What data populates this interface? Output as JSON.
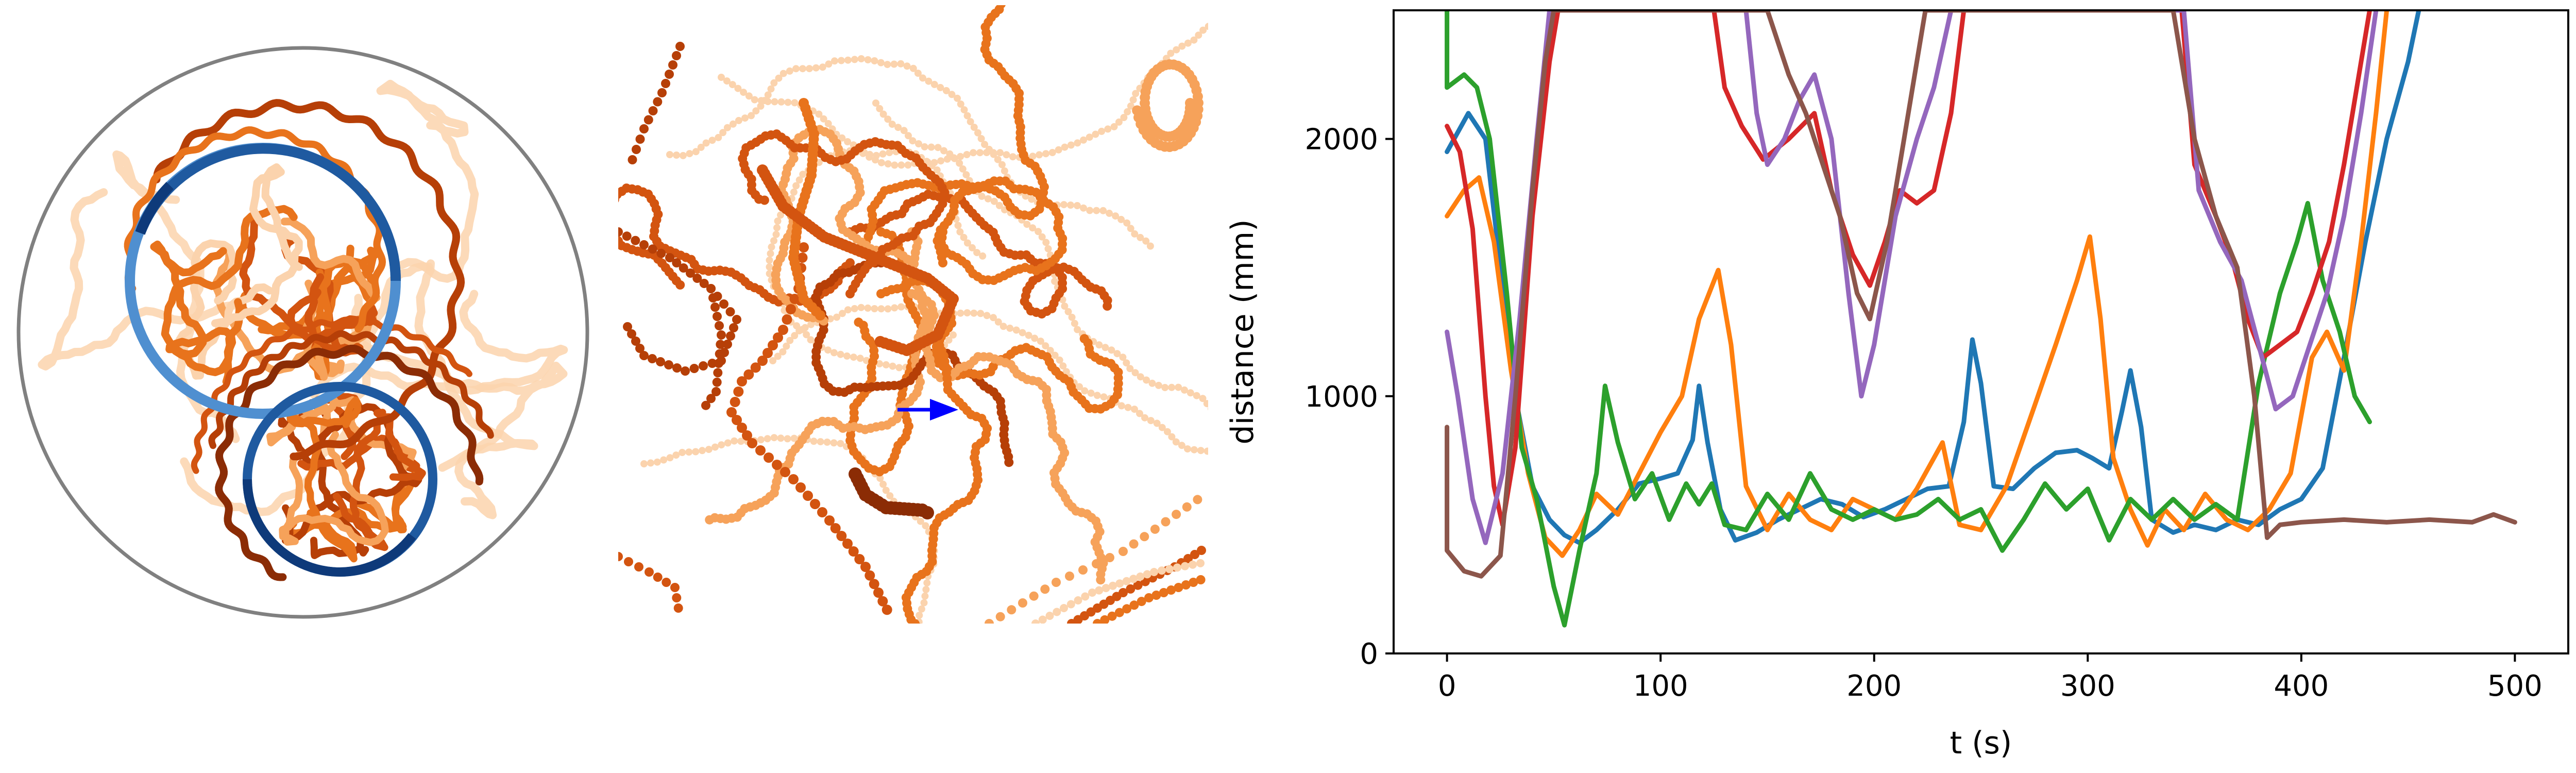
{
  "chart_data": [
    {
      "type": "trajectory",
      "panel": "arena",
      "arena_color": "#808080",
      "ring_colors": {
        "outer": "#1f5aa0",
        "inner": "#0e3a7a",
        "highlight": "#4f8fd0"
      },
      "track_colors": [
        "#8b2c05",
        "#b63f07",
        "#d35410",
        "#e8731c",
        "#f6a25a",
        "#fbd3ad"
      ]
    },
    {
      "type": "scatter",
      "panel": "zoom",
      "arrow_color": "#0000ff",
      "dot_colors": [
        "#8b2c05",
        "#b63f07",
        "#d35410",
        "#e8731c",
        "#f6a25a",
        "#fbd3ad"
      ]
    },
    {
      "type": "line",
      "panel": "distance",
      "xlabel": "t (s)",
      "ylabel": "distance (mm)",
      "xlim": [
        -25,
        525
      ],
      "ylim": [
        0,
        2500
      ],
      "xticks": [
        0,
        100,
        200,
        300,
        400,
        500
      ],
      "yticks": [
        0,
        1000,
        2000
      ],
      "grid": false,
      "series": [
        {
          "color": "#1f77b4",
          "points": [
            [
              0,
              1950
            ],
            [
              10,
              2100
            ],
            [
              18,
              2000
            ],
            [
              25,
              1500
            ],
            [
              32,
              1000
            ],
            [
              40,
              650
            ],
            [
              48,
              520
            ],
            [
              55,
              460
            ],
            [
              62,
              430
            ],
            [
              70,
              480
            ],
            [
              80,
              560
            ],
            [
              90,
              660
            ],
            [
              100,
              680
            ],
            [
              108,
              700
            ],
            [
              115,
              830
            ],
            [
              118,
              1040
            ],
            [
              122,
              820
            ],
            [
              128,
              560
            ],
            [
              135,
              440
            ],
            [
              145,
              470
            ],
            [
              155,
              520
            ],
            [
              165,
              560
            ],
            [
              175,
              600
            ],
            [
              185,
              580
            ],
            [
              195,
              530
            ],
            [
              205,
              560
            ],
            [
              215,
              600
            ],
            [
              225,
              640
            ],
            [
              235,
              650
            ],
            [
              242,
              900
            ],
            [
              246,
              1220
            ],
            [
              250,
              1050
            ],
            [
              256,
              650
            ],
            [
              265,
              640
            ],
            [
              275,
              720
            ],
            [
              285,
              780
            ],
            [
              295,
              790
            ],
            [
              302,
              760
            ],
            [
              310,
              720
            ],
            [
              316,
              940
            ],
            [
              320,
              1100
            ],
            [
              325,
              880
            ],
            [
              330,
              520
            ],
            [
              340,
              470
            ],
            [
              350,
              500
            ],
            [
              360,
              480
            ],
            [
              370,
              520
            ],
            [
              380,
              500
            ],
            [
              390,
              560
            ],
            [
              400,
              600
            ],
            [
              410,
              720
            ],
            [
              420,
              1150
            ],
            [
              430,
              1600
            ],
            [
              440,
              2000
            ],
            [
              450,
              2300
            ],
            [
              455,
              2500
            ]
          ]
        },
        {
          "color": "#ff7f0e",
          "points": [
            [
              0,
              1700
            ],
            [
              8,
              1800
            ],
            [
              15,
              1850
            ],
            [
              22,
              1600
            ],
            [
              30,
              1100
            ],
            [
              38,
              700
            ],
            [
              46,
              450
            ],
            [
              54,
              380
            ],
            [
              62,
              480
            ],
            [
              70,
              620
            ],
            [
              80,
              540
            ],
            [
              90,
              700
            ],
            [
              100,
              860
            ],
            [
              110,
              1000
            ],
            [
              118,
              1300
            ],
            [
              127,
              1490
            ],
            [
              133,
              1200
            ],
            [
              140,
              650
            ],
            [
              150,
              480
            ],
            [
              160,
              620
            ],
            [
              170,
              520
            ],
            [
              180,
              480
            ],
            [
              190,
              600
            ],
            [
              200,
              560
            ],
            [
              210,
              520
            ],
            [
              220,
              640
            ],
            [
              232,
              820
            ],
            [
              240,
              500
            ],
            [
              250,
              480
            ],
            [
              262,
              650
            ],
            [
              275,
              960
            ],
            [
              285,
              1200
            ],
            [
              295,
              1450
            ],
            [
              301,
              1620
            ],
            [
              306,
              1300
            ],
            [
              312,
              760
            ],
            [
              320,
              560
            ],
            [
              328,
              420
            ],
            [
              336,
              560
            ],
            [
              345,
              480
            ],
            [
              355,
              620
            ],
            [
              365,
              520
            ],
            [
              375,
              480
            ],
            [
              385,
              560
            ],
            [
              395,
              700
            ],
            [
              405,
              1150
            ],
            [
              412,
              1250
            ],
            [
              420,
              1100
            ],
            [
              428,
              1600
            ],
            [
              435,
              2100
            ],
            [
              440,
              2500
            ]
          ]
        },
        {
          "color": "#2ca02c",
          "points": [
            [
              0,
              2500
            ],
            [
              0,
              2200
            ],
            [
              8,
              2250
            ],
            [
              14,
              2200
            ],
            [
              20,
              2000
            ],
            [
              28,
              1400
            ],
            [
              35,
              800
            ],
            [
              42,
              600
            ],
            [
              50,
              260
            ],
            [
              55,
              110
            ],
            [
              62,
              400
            ],
            [
              70,
              700
            ],
            [
              74,
              1040
            ],
            [
              80,
              820
            ],
            [
              88,
              600
            ],
            [
              96,
              700
            ],
            [
              104,
              520
            ],
            [
              112,
              660
            ],
            [
              118,
              580
            ],
            [
              124,
              660
            ],
            [
              130,
              500
            ],
            [
              140,
              480
            ],
            [
              150,
              620
            ],
            [
              160,
              520
            ],
            [
              170,
              700
            ],
            [
              180,
              560
            ],
            [
              190,
              520
            ],
            [
              200,
              560
            ],
            [
              210,
              520
            ],
            [
              220,
              540
            ],
            [
              230,
              600
            ],
            [
              240,
              520
            ],
            [
              250,
              560
            ],
            [
              260,
              400
            ],
            [
              270,
              520
            ],
            [
              280,
              660
            ],
            [
              290,
              560
            ],
            [
              300,
              640
            ],
            [
              310,
              440
            ],
            [
              320,
              600
            ],
            [
              330,
              520
            ],
            [
              340,
              600
            ],
            [
              350,
              520
            ],
            [
              360,
              580
            ],
            [
              370,
              520
            ],
            [
              380,
              1050
            ],
            [
              390,
              1400
            ],
            [
              398,
              1600
            ],
            [
              403,
              1750
            ],
            [
              410,
              1450
            ],
            [
              418,
              1250
            ],
            [
              425,
              1000
            ],
            [
              432,
              900
            ]
          ]
        },
        {
          "color": "#d62728",
          "points": [
            [
              0,
              2050
            ],
            [
              6,
              1950
            ],
            [
              12,
              1650
            ],
            [
              18,
              1000
            ],
            [
              22,
              650
            ],
            [
              26,
              500
            ],
            [
              32,
              800
            ],
            [
              40,
              1700
            ],
            [
              48,
              2300
            ],
            [
              52,
              2500
            ],
            [
              125,
              2500
            ],
            [
              130,
              2200
            ],
            [
              138,
              2050
            ],
            [
              148,
              1920
            ],
            [
              160,
              2000
            ],
            [
              172,
              2100
            ],
            [
              180,
              1800
            ],
            [
              190,
              1550
            ],
            [
              198,
              1430
            ],
            [
              205,
              1600
            ],
            [
              212,
              1800
            ],
            [
              220,
              1750
            ],
            [
              228,
              1800
            ],
            [
              236,
              2100
            ],
            [
              242,
              2500
            ],
            [
              344,
              2500
            ],
            [
              350,
              1900
            ],
            [
              360,
              1700
            ],
            [
              368,
              1520
            ],
            [
              375,
              1300
            ],
            [
              382,
              1150
            ],
            [
              390,
              1200
            ],
            [
              398,
              1250
            ],
            [
              405,
              1400
            ],
            [
              413,
              1600
            ],
            [
              420,
              1900
            ],
            [
              428,
              2300
            ],
            [
              432,
              2500
            ]
          ]
        },
        {
          "color": "#9467bd",
          "points": [
            [
              0,
              1250
            ],
            [
              5,
              1000
            ],
            [
              12,
              600
            ],
            [
              18,
              430
            ],
            [
              26,
              700
            ],
            [
              34,
              1300
            ],
            [
              42,
              2000
            ],
            [
              48,
              2500
            ],
            [
              140,
              2500
            ],
            [
              145,
              2100
            ],
            [
              150,
              1900
            ],
            [
              158,
              2000
            ],
            [
              165,
              2150
            ],
            [
              172,
              2250
            ],
            [
              180,
              2000
            ],
            [
              188,
              1400
            ],
            [
              194,
              1000
            ],
            [
              200,
              1200
            ],
            [
              210,
              1700
            ],
            [
              220,
              2000
            ],
            [
              228,
              2200
            ],
            [
              236,
              2500
            ],
            [
              345,
              2500
            ],
            [
              352,
              1800
            ],
            [
              362,
              1600
            ],
            [
              372,
              1450
            ],
            [
              380,
              1200
            ],
            [
              388,
              950
            ],
            [
              396,
              1000
            ],
            [
              404,
              1200
            ],
            [
              412,
              1400
            ],
            [
              420,
              1700
            ],
            [
              428,
              2100
            ],
            [
              435,
              2500
            ]
          ]
        },
        {
          "color": "#8c564b",
          "points": [
            [
              0,
              880
            ],
            [
              0,
              400
            ],
            [
              8,
              320
            ],
            [
              16,
              300
            ],
            [
              25,
              380
            ],
            [
              32,
              1000
            ],
            [
              40,
              1800
            ],
            [
              46,
              2300
            ],
            [
              50,
              2500
            ],
            [
              150,
              2500
            ],
            [
              160,
              2250
            ],
            [
              168,
              2100
            ],
            [
              176,
              1900
            ],
            [
              184,
              1700
            ],
            [
              192,
              1400
            ],
            [
              198,
              1300
            ],
            [
              206,
              1600
            ],
            [
              214,
              2000
            ],
            [
              220,
              2300
            ],
            [
              224,
              2500
            ],
            [
              340,
              2500
            ],
            [
              350,
              2000
            ],
            [
              360,
              1700
            ],
            [
              370,
              1500
            ],
            [
              378,
              1000
            ],
            [
              384,
              450
            ],
            [
              390,
              500
            ],
            [
              400,
              510
            ],
            [
              420,
              520
            ],
            [
              440,
              510
            ],
            [
              460,
              520
            ],
            [
              480,
              510
            ],
            [
              490,
              540
            ],
            [
              500,
              510
            ]
          ]
        }
      ]
    }
  ]
}
